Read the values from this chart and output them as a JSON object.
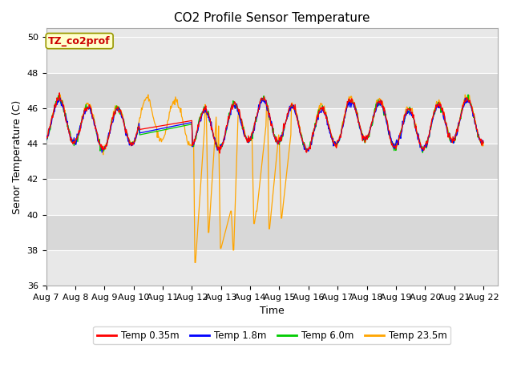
{
  "title": "CO2 Profile Sensor Temperature",
  "xlabel": "Time",
  "ylabel": "Senor Temperature (C)",
  "ylim": [
    36,
    50.5
  ],
  "yticks": [
    36,
    38,
    40,
    42,
    44,
    46,
    48,
    50
  ],
  "xlim_days": [
    0,
    15.5
  ],
  "x_tick_labels": [
    "Aug 7",
    "Aug 8",
    "Aug 9",
    "Aug 10",
    "Aug 11",
    "Aug 12",
    "Aug 13",
    "Aug 14",
    "Aug 15",
    "Aug 16",
    "Aug 17",
    "Aug 18",
    "Aug 19",
    "Aug 20",
    "Aug 21",
    "Aug 22"
  ],
  "legend_entries": [
    "Temp 0.35m",
    "Temp 1.8m",
    "Temp 6.0m",
    "Temp 23.5m"
  ],
  "legend_colors": [
    "#ff0000",
    "#0000ff",
    "#00cc00",
    "#ffa500"
  ],
  "annotation_text": "TZ_co2prof",
  "annotation_color": "#cc0000",
  "annotation_bg": "#ffffcc",
  "annotation_border": "#999900",
  "fig_facecolor": "#ffffff",
  "plot_facecolor": "#e8e8e8",
  "grid_color": "#ffffff",
  "title_fontsize": 11,
  "axis_fontsize": 9,
  "tick_fontsize": 8
}
